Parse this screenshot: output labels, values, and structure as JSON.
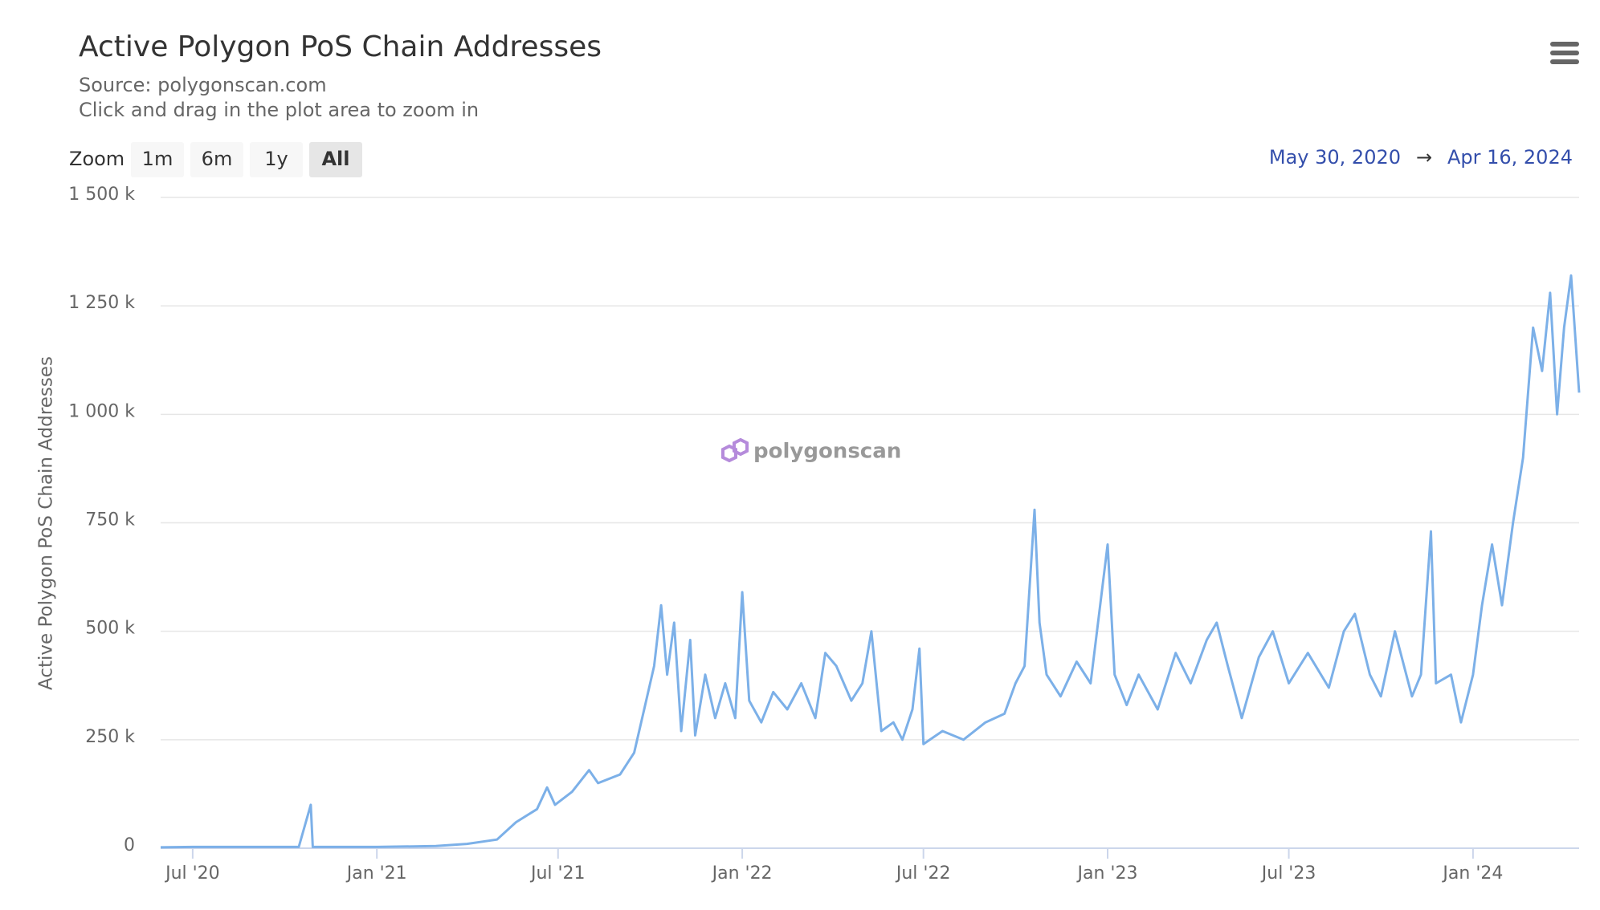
{
  "chart_data": {
    "type": "line",
    "title": "Active Polygon PoS Chain Addresses",
    "subtitle": "Source: polygonscan.com",
    "hint": "Click and drag in the plot area to zoom in",
    "zoom_label": "Zoom",
    "zoom_buttons": [
      "1m",
      "6m",
      "1y",
      "All"
    ],
    "range_start": "May 30, 2020",
    "range_arrow": "→",
    "range_end": "Apr 16, 2024",
    "watermark": "polygonscan",
    "y_label": "Active Polygon PoS Chain Addresses",
    "color": "#7cb0e8",
    "grid": true,
    "xlim": [
      "2020-05-30",
      "2024-04-16"
    ],
    "xticks": [
      {
        "value": "2020-07-01",
        "label": "Jul '20"
      },
      {
        "value": "2021-01-01",
        "label": "Jan '21"
      },
      {
        "value": "2021-07-01",
        "label": "Jul '21"
      },
      {
        "value": "2022-01-01",
        "label": "Jan '22"
      },
      {
        "value": "2022-07-01",
        "label": "Jul '22"
      },
      {
        "value": "2023-01-01",
        "label": "Jan '23"
      },
      {
        "value": "2023-07-01",
        "label": "Jul '23"
      },
      {
        "value": "2024-01-01",
        "label": "Jan '24"
      }
    ],
    "ylim": [
      0,
      1500000
    ],
    "yticks": [
      0,
      {
        "value": 250000,
        "label": "250 k"
      },
      {
        "value": 500000,
        "label": "500 k"
      },
      {
        "value": 750000,
        "label": "750 k"
      },
      {
        "value": 1000000,
        "label": "1 000 k"
      },
      {
        "value": 1250000,
        "label": "1 250 k"
      },
      {
        "value": 1500000,
        "label": "1 500 k"
      }
    ],
    "x": [
      "2020-05-30",
      "2020-07-01",
      "2020-09-01",
      "2020-10-15",
      "2020-10-27",
      "2020-10-29",
      "2020-12-01",
      "2021-01-01",
      "2021-03-01",
      "2021-04-01",
      "2021-05-01",
      "2021-05-20",
      "2021-06-10",
      "2021-06-20",
      "2021-06-28",
      "2021-07-15",
      "2021-08-01",
      "2021-08-10",
      "2021-09-01",
      "2021-09-15",
      "2021-09-25",
      "2021-10-05",
      "2021-10-12",
      "2021-10-18",
      "2021-10-25",
      "2021-11-01",
      "2021-11-10",
      "2021-11-15",
      "2021-11-25",
      "2021-12-05",
      "2021-12-15",
      "2021-12-25",
      "2022-01-01",
      "2022-01-08",
      "2022-01-20",
      "2022-02-01",
      "2022-02-15",
      "2022-03-01",
      "2022-03-15",
      "2022-03-25",
      "2022-04-05",
      "2022-04-20",
      "2022-05-01",
      "2022-05-10",
      "2022-05-20",
      "2022-06-01",
      "2022-06-10",
      "2022-06-20",
      "2022-06-27",
      "2022-07-01",
      "2022-07-20",
      "2022-08-10",
      "2022-09-01",
      "2022-09-20",
      "2022-10-01",
      "2022-10-10",
      "2022-10-20",
      "2022-10-25",
      "2022-11-01",
      "2022-11-15",
      "2022-12-01",
      "2022-12-15",
      "2023-01-01",
      "2023-01-08",
      "2023-01-20",
      "2023-02-01",
      "2023-02-20",
      "2023-03-10",
      "2023-03-25",
      "2023-04-10",
      "2023-04-20",
      "2023-05-01",
      "2023-05-15",
      "2023-06-01",
      "2023-06-15",
      "2023-07-01",
      "2023-07-20",
      "2023-08-10",
      "2023-08-25",
      "2023-09-05",
      "2023-09-20",
      "2023-10-01",
      "2023-10-15",
      "2023-11-01",
      "2023-11-10",
      "2023-11-20",
      "2023-11-25",
      "2023-12-10",
      "2023-12-20",
      "2024-01-01",
      "2024-01-10",
      "2024-01-20",
      "2024-01-30",
      "2024-02-10",
      "2024-02-20",
      "2024-03-01",
      "2024-03-10",
      "2024-03-18",
      "2024-03-25",
      "2024-04-01",
      "2024-04-08",
      "2024-04-16"
    ],
    "values": [
      2000,
      3000,
      3000,
      3000,
      100000,
      3000,
      3000,
      3000,
      5000,
      10000,
      20000,
      60000,
      90000,
      140000,
      100000,
      130000,
      180000,
      150000,
      170000,
      220000,
      320000,
      420000,
      560000,
      400000,
      520000,
      270000,
      480000,
      260000,
      400000,
      300000,
      380000,
      300000,
      590000,
      340000,
      290000,
      360000,
      320000,
      380000,
      300000,
      450000,
      420000,
      340000,
      380000,
      500000,
      270000,
      290000,
      250000,
      320000,
      460000,
      240000,
      270000,
      250000,
      290000,
      310000,
      380000,
      420000,
      780000,
      520000,
      400000,
      350000,
      430000,
      380000,
      700000,
      400000,
      330000,
      400000,
      320000,
      450000,
      380000,
      480000,
      520000,
      420000,
      300000,
      440000,
      500000,
      380000,
      450000,
      370000,
      500000,
      540000,
      400000,
      350000,
      500000,
      350000,
      400000,
      730000,
      380000,
      400000,
      290000,
      400000,
      560000,
      700000,
      560000,
      750000,
      900000,
      1200000,
      1100000,
      1280000,
      1000000,
      1200000,
      1320000,
      1050000
    ]
  }
}
